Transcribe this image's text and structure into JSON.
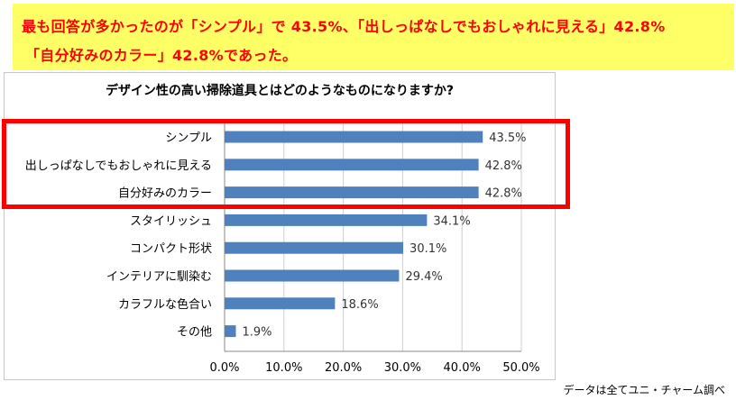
{
  "callout": {
    "line1": "最も回答が多かったのが「シンプル」で 43.5%、「出しっぱなしでもおしゃれに見える」42.8%",
    "line2": "「自分好みのカラー」42.8%であった。"
  },
  "footnote": "データは全てユニ・チャーム調べ",
  "colors": {
    "bar": "#4f81bd",
    "highlight": "#ff0000",
    "callout_bg": "#ffff66",
    "callout_text": "#ff0000"
  },
  "chart_data": {
    "type": "bar",
    "orientation": "horizontal",
    "title": "デザイン性の高い掃除道具とはどのようなものになりますか?",
    "categories": [
      "シンプル",
      "出しっぱなしでもおしゃれに見える",
      "自分好みのカラー",
      "スタイリッシュ",
      "コンパクト形状",
      "インテリアに馴染む",
      "カラフルな色合い",
      "その他"
    ],
    "values": [
      43.5,
      42.8,
      42.8,
      34.1,
      30.1,
      29.4,
      18.6,
      1.9
    ],
    "value_labels": [
      "43.5%",
      "42.8%",
      "42.8%",
      "34.1%",
      "30.1%",
      "29.4%",
      "18.6%",
      "1.9%"
    ],
    "xlim": [
      0,
      50
    ],
    "xticks": [
      0,
      10,
      20,
      30,
      40,
      50
    ],
    "xtick_labels": [
      "0.0%",
      "10.0%",
      "20.0%",
      "30.0%",
      "40.0%",
      "50.0%"
    ],
    "grid": true,
    "highlighted_categories": [
      "シンプル",
      "出しっぱなしでもおしゃれに見える",
      "自分好みのカラー"
    ]
  }
}
